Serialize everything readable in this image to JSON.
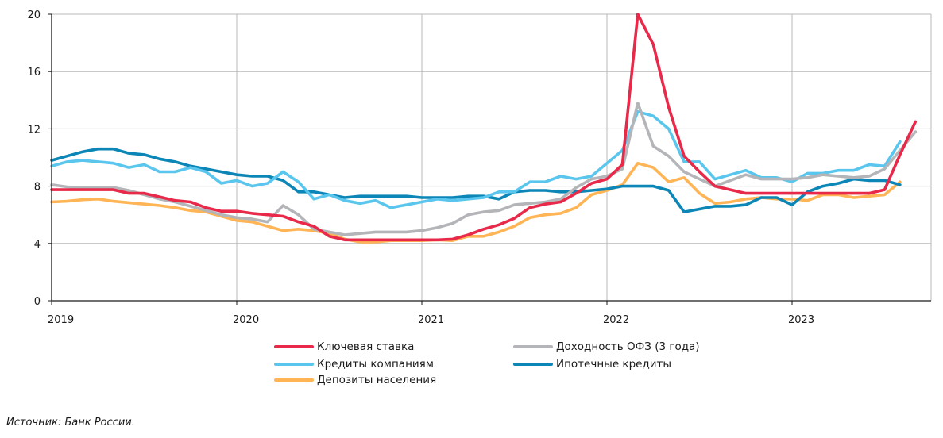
{
  "chart_data": {
    "type": "line",
    "title": "",
    "xlabel": "",
    "ylabel": "",
    "ylim": [
      0,
      20
    ],
    "yticks": [
      0,
      4,
      8,
      12,
      16,
      20
    ],
    "xtick_labels": [
      "2019",
      "2020",
      "2021",
      "2022",
      "2023"
    ],
    "x_start": "2019-01",
    "x_end": "2023-09",
    "x_step": "month",
    "grid": true,
    "legend_position": "bottom",
    "series": [
      {
        "name": "Ключевая ставка",
        "color": "#e8294a",
        "values": [
          7.75,
          7.75,
          7.75,
          7.75,
          7.75,
          7.5,
          7.5,
          7.25,
          7.0,
          6.9,
          6.5,
          6.25,
          6.25,
          6.1,
          6.0,
          5.9,
          5.5,
          5.2,
          4.5,
          4.25,
          4.25,
          4.25,
          4.25,
          4.25,
          4.25,
          4.25,
          4.3,
          4.6,
          5.0,
          5.3,
          5.75,
          6.5,
          6.75,
          6.9,
          7.5,
          8.2,
          8.5,
          9.5,
          20.0,
          17.9,
          13.5,
          10.1,
          9.0,
          8.0,
          7.75,
          7.5,
          7.5,
          7.5,
          7.5,
          7.5,
          7.5,
          7.5,
          7.5,
          7.5,
          7.75,
          10.2,
          12.5
        ]
      },
      {
        "name": "Доходность ОФЗ (3 года)",
        "color": "#b3b5b8",
        "values": [
          8.1,
          7.95,
          7.9,
          7.9,
          7.9,
          7.7,
          7.4,
          7.1,
          6.9,
          6.6,
          6.3,
          6.0,
          5.8,
          5.7,
          5.5,
          6.65,
          6.0,
          5.0,
          4.8,
          4.6,
          4.7,
          4.8,
          4.8,
          4.8,
          4.9,
          5.1,
          5.4,
          6.0,
          6.2,
          6.3,
          6.7,
          6.8,
          6.9,
          7.1,
          7.9,
          8.5,
          8.7,
          9.2,
          13.8,
          10.8,
          10.1,
          9.0,
          8.5,
          8.0,
          8.4,
          8.8,
          8.5,
          8.5,
          8.5,
          8.6,
          8.8,
          8.7,
          8.6,
          8.7,
          9.2,
          10.5,
          11.8
        ]
      },
      {
        "name": "Кредиты компаниям",
        "color": "#5bc6ed",
        "values": [
          9.4,
          9.7,
          9.8,
          9.7,
          9.6,
          9.3,
          9.5,
          9.0,
          9.0,
          9.3,
          9.0,
          8.2,
          8.4,
          8.0,
          8.2,
          9.0,
          8.3,
          7.1,
          7.4,
          7.0,
          6.8,
          7.0,
          6.5,
          6.7,
          6.9,
          7.1,
          7.0,
          7.1,
          7.2,
          7.6,
          7.6,
          8.3,
          8.3,
          8.7,
          8.5,
          8.7,
          9.6,
          10.5,
          13.2,
          12.9,
          12.0,
          9.7,
          9.7,
          8.5,
          8.8,
          9.1,
          8.6,
          8.6,
          8.3,
          8.9,
          8.9,
          9.1,
          9.1,
          9.5,
          9.4,
          11.1,
          null
        ]
      },
      {
        "name": "Ипотечные кредиты",
        "color": "#0b86b6",
        "values": [
          9.8,
          10.1,
          10.4,
          10.6,
          10.6,
          10.3,
          10.2,
          9.9,
          9.7,
          9.4,
          9.2,
          9.0,
          8.8,
          8.7,
          8.7,
          8.4,
          7.6,
          7.6,
          7.4,
          7.2,
          7.3,
          7.3,
          7.3,
          7.3,
          7.2,
          7.2,
          7.2,
          7.3,
          7.3,
          7.1,
          7.6,
          7.7,
          7.7,
          7.6,
          7.6,
          7.7,
          7.8,
          8.0,
          8.0,
          8.0,
          7.7,
          6.2,
          6.4,
          6.6,
          6.6,
          6.7,
          7.2,
          7.2,
          6.7,
          7.6,
          8.0,
          8.2,
          8.5,
          8.4,
          8.4,
          8.1,
          null
        ]
      },
      {
        "name": "Депозиты населения",
        "color": "#ffb555",
        "values": [
          6.9,
          6.95,
          7.05,
          7.1,
          6.95,
          6.85,
          6.75,
          6.65,
          6.5,
          6.3,
          6.2,
          5.9,
          5.6,
          5.5,
          5.2,
          4.9,
          5.0,
          4.9,
          4.7,
          4.3,
          4.1,
          4.1,
          4.2,
          4.2,
          4.2,
          4.25,
          4.2,
          4.5,
          4.5,
          4.8,
          5.2,
          5.8,
          6.0,
          6.1,
          6.5,
          7.4,
          7.7,
          8.1,
          9.6,
          9.3,
          8.3,
          8.6,
          7.5,
          6.8,
          6.9,
          7.1,
          7.2,
          7.1,
          7.1,
          7.0,
          7.4,
          7.4,
          7.2,
          7.3,
          7.4,
          8.3,
          null
        ]
      }
    ]
  },
  "legend": {
    "items": [
      {
        "label": "Ключевая ставка",
        "color": "#e8294a"
      },
      {
        "label": "Доходность ОФЗ (3 года)",
        "color": "#b3b5b8"
      },
      {
        "label": "Кредиты компаниям",
        "color": "#5bc6ed"
      },
      {
        "label": "Ипотечные кредиты",
        "color": "#0b86b6"
      },
      {
        "label": "Депозиты населения",
        "color": "#ffb555"
      }
    ]
  },
  "source": "Источник: Банк России."
}
